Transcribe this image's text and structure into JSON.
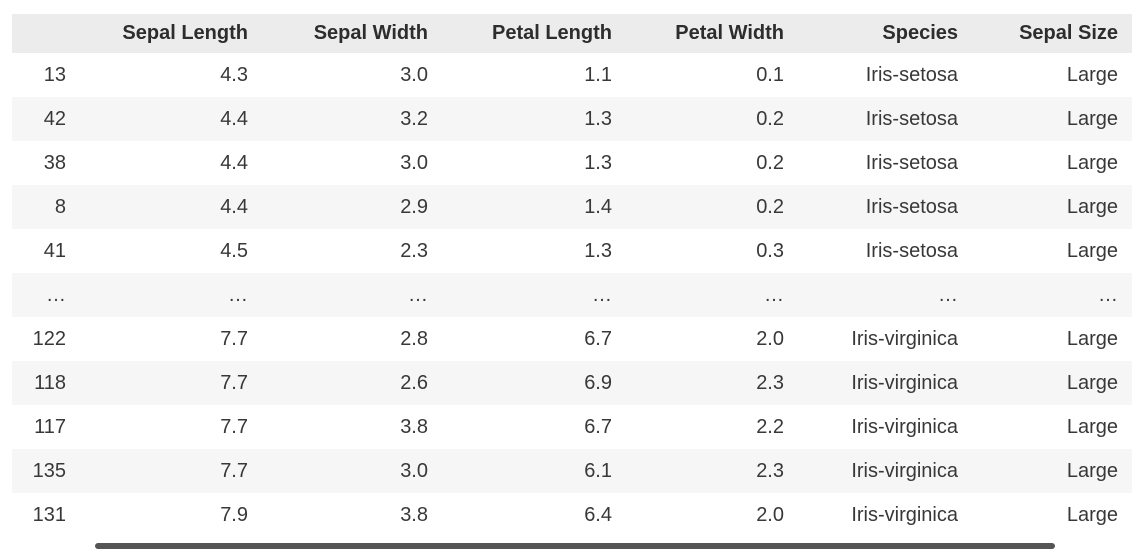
{
  "table": {
    "widget": "dataframe-grid",
    "column_keys": [
      "index",
      "sepal_length",
      "sepal_width",
      "petal_length",
      "petal_width",
      "species",
      "sepal_size"
    ],
    "headers": [
      "",
      "Sepal Length",
      "Sepal Width",
      "Petal Length",
      "Petal Width",
      "Species",
      "Sepal Size"
    ],
    "rows": [
      [
        "13",
        "4.3",
        "3.0",
        "1.1",
        "0.1",
        "Iris-setosa",
        "Large"
      ],
      [
        "42",
        "4.4",
        "3.2",
        "1.3",
        "0.2",
        "Iris-setosa",
        "Large"
      ],
      [
        "38",
        "4.4",
        "3.0",
        "1.3",
        "0.2",
        "Iris-setosa",
        "Large"
      ],
      [
        "8",
        "4.4",
        "2.9",
        "1.4",
        "0.2",
        "Iris-setosa",
        "Large"
      ],
      [
        "41",
        "4.5",
        "2.3",
        "1.3",
        "0.3",
        "Iris-setosa",
        "Large"
      ],
      [
        "…",
        "…",
        "…",
        "…",
        "…",
        "…",
        "…"
      ],
      [
        "122",
        "7.7",
        "2.8",
        "6.7",
        "2.0",
        "Iris-virginica",
        "Large"
      ],
      [
        "118",
        "7.7",
        "2.6",
        "6.9",
        "2.3",
        "Iris-virginica",
        "Large"
      ],
      [
        "117",
        "7.7",
        "3.8",
        "6.7",
        "2.2",
        "Iris-virginica",
        "Large"
      ],
      [
        "135",
        "7.7",
        "3.0",
        "6.1",
        "2.3",
        "Iris-virginica",
        "Large"
      ],
      [
        "131",
        "7.9",
        "3.8",
        "6.4",
        "2.0",
        "Iris-virginica",
        "Large"
      ]
    ],
    "ellipsis_row_index": 5,
    "striped_row_indices": [
      1,
      3,
      5,
      7,
      9
    ]
  },
  "scrollbar": {
    "orientation": "horizontal"
  },
  "colors": {
    "background": "#ffffff",
    "header_bg": "#ececec",
    "header_text": "#2d2d2d",
    "body_text": "#383838",
    "stripe_bg": "#f6f6f6",
    "scrollbar_thumb": "#555555"
  }
}
